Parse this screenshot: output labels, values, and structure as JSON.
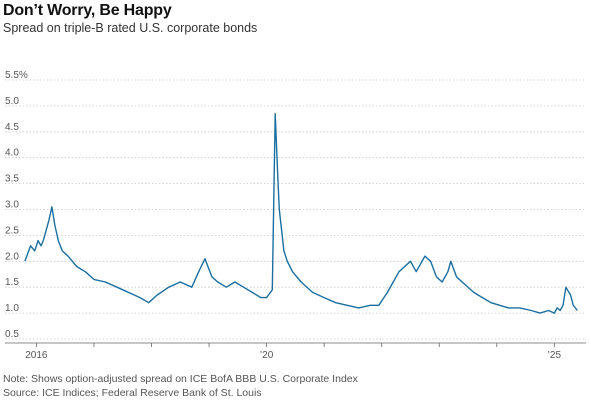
{
  "title": "Don’t Worry, Be Happy",
  "subtitle": "Spread on triple-B rated U.S. corporate bonds",
  "note": "Note: Shows option-adjusted spread on ICE BofA BBB U.S. Corporate Index",
  "source": "Source: ICE Indices; Federal Reserve Bank of St. Louis",
  "colors": {
    "line": "#1a6fa0",
    "grid": "#c9c9c9",
    "axis": "#666666"
  },
  "chart_data": {
    "type": "line",
    "title": "Don’t Worry, Be Happy",
    "subtitle": "Spread on triple-B rated U.S. corporate bonds",
    "xlabel": "",
    "ylabel": "",
    "xlim": [
      2015.75,
      2025.55
    ],
    "ylim": [
      0.5,
      5.5
    ],
    "y_ticks": [
      0.5,
      1.0,
      1.5,
      2.0,
      2.5,
      3.0,
      3.5,
      4.0,
      4.5,
      5.0,
      5.5
    ],
    "y_tick_labels": [
      "0.5",
      "1.0",
      "1.5",
      "2.0",
      "2.5",
      "3.0",
      "3.5",
      "4.0",
      "4.5",
      "5.0",
      "5.5%"
    ],
    "x_ticks": [
      2016,
      2020,
      2025
    ],
    "x_tick_labels": [
      "2016",
      "’20",
      "’25"
    ],
    "grid": "horizontal",
    "legend": "none",
    "series": [
      {
        "x": [
          2015.8,
          2015.9,
          2015.97,
          2016.03,
          2016.08,
          2016.12,
          2016.17,
          2016.22,
          2016.27,
          2016.32,
          2016.38,
          2016.45,
          2016.55,
          2016.7,
          2016.85,
          2017.0,
          2017.2,
          2017.4,
          2017.6,
          2017.8,
          2017.95,
          2018.1,
          2018.3,
          2018.5,
          2018.7,
          2018.82,
          2018.93,
          2018.98,
          2019.05,
          2019.15,
          2019.3,
          2019.45,
          2019.6,
          2019.75,
          2019.9,
          2020.0,
          2020.1,
          2020.15,
          2020.18,
          2020.2,
          2020.22,
          2020.26,
          2020.3,
          2020.36,
          2020.45,
          2020.6,
          2020.8,
          2021.0,
          2021.2,
          2021.4,
          2021.6,
          2021.8,
          2021.95,
          2022.1,
          2022.2,
          2022.3,
          2022.4,
          2022.5,
          2022.6,
          2022.75,
          2022.85,
          2022.95,
          2023.05,
          2023.15,
          2023.2,
          2023.3,
          2023.45,
          2023.6,
          2023.75,
          2023.9,
          2024.05,
          2024.2,
          2024.4,
          2024.6,
          2024.75,
          2024.9,
          2025.0,
          2025.05,
          2025.1,
          2025.15,
          2025.2,
          2025.28,
          2025.33,
          2025.4
        ],
        "values": [
          2.0,
          2.3,
          2.2,
          2.4,
          2.3,
          2.4,
          2.6,
          2.8,
          3.05,
          2.7,
          2.4,
          2.2,
          2.1,
          1.9,
          1.8,
          1.65,
          1.6,
          1.5,
          1.4,
          1.3,
          1.2,
          1.35,
          1.5,
          1.6,
          1.5,
          1.8,
          2.05,
          1.9,
          1.7,
          1.6,
          1.5,
          1.6,
          1.5,
          1.4,
          1.3,
          1.3,
          1.45,
          4.85,
          4.0,
          3.5,
          3.0,
          2.6,
          2.2,
          2.0,
          1.8,
          1.6,
          1.4,
          1.3,
          1.2,
          1.15,
          1.1,
          1.15,
          1.15,
          1.4,
          1.6,
          1.8,
          1.9,
          2.0,
          1.8,
          2.1,
          2.0,
          1.7,
          1.6,
          1.8,
          2.0,
          1.7,
          1.55,
          1.4,
          1.3,
          1.2,
          1.15,
          1.1,
          1.1,
          1.05,
          1.0,
          1.05,
          1.0,
          1.1,
          1.05,
          1.15,
          1.5,
          1.35,
          1.15,
          1.05
        ]
      }
    ]
  }
}
